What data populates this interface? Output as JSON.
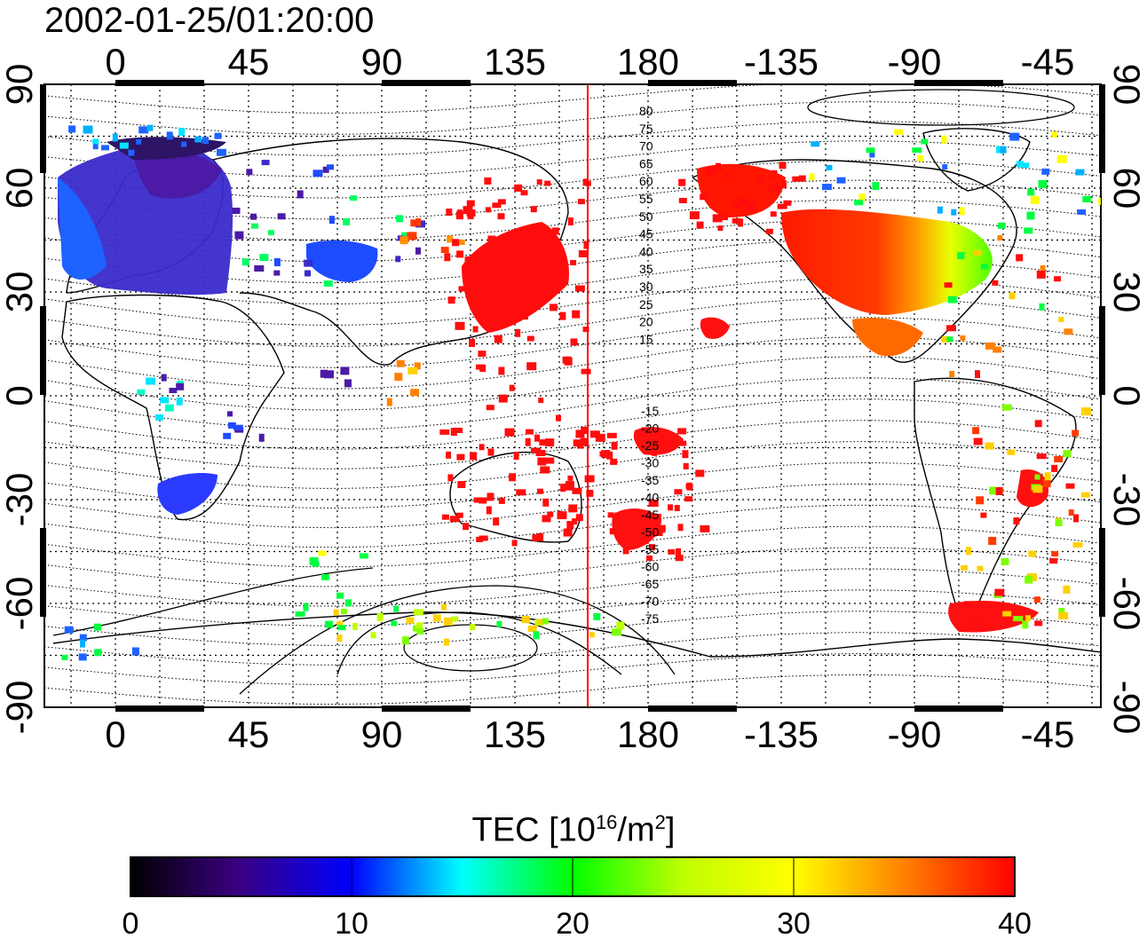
{
  "title": "2002-01-25/01:20:00",
  "map": {
    "lon_ticks_top": [
      "0",
      "45",
      "90",
      "135",
      "180",
      "-135",
      "-90",
      "-45"
    ],
    "lon_ticks_bottom": [
      "0",
      "45",
      "90",
      "135",
      "180",
      "-135",
      "-90",
      "-45"
    ],
    "lat_ticks_left": [
      "90",
      "60",
      "30",
      "0",
      "-30",
      "-60",
      "-90"
    ],
    "lat_ticks_right": [
      "90",
      "60",
      "30",
      "0",
      "-30",
      "-60",
      "-90"
    ],
    "magnetic_latitude_labels_north": [
      "80",
      "75",
      "70",
      "65",
      "60",
      "55",
      "50",
      "45",
      "40",
      "35",
      "30",
      "25",
      "20",
      "15"
    ],
    "magnetic_latitude_labels_south": [
      "-15",
      "-20",
      "-25",
      "-30",
      "-35",
      "-40",
      "-45",
      "-50",
      "-55",
      "-60",
      "-65",
      "-70",
      "-75"
    ],
    "terminator_color": "#ff0000",
    "grid_style": "dotted"
  },
  "colorbar": {
    "label_main": "TEC  [10",
    "label_exp1": "16",
    "label_mid": "/m",
    "label_exp2": "2",
    "label_end": "]",
    "ticks": [
      "0",
      "10",
      "20",
      "30",
      "40"
    ],
    "range": [
      0,
      40
    ],
    "colormap": [
      "#000000",
      "#3a0080",
      "#0000ff",
      "#00ffff",
      "#00ff00",
      "#ffff00",
      "#ff8000",
      "#ff0000"
    ]
  }
}
